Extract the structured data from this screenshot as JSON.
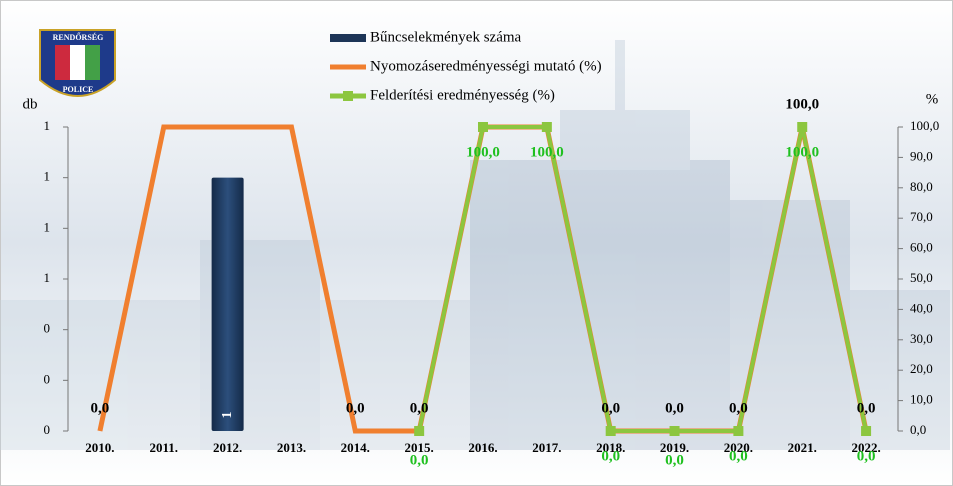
{
  "logo": {
    "top": "RENDŐRSÉG",
    "bottom": "POLICE"
  },
  "chart_data": {
    "type": "combo",
    "ylabel": "db",
    "y2label": "%",
    "categories": [
      "2010.",
      "2011.",
      "2012.",
      "2013.",
      "2014.",
      "2015.",
      "2016.",
      "2017.",
      "2018.",
      "2019.",
      "2020.",
      "2021.",
      "2022."
    ],
    "ylim": [
      0,
      1.2
    ],
    "yticks": [
      {
        "value": 0,
        "label": "0"
      },
      {
        "value": 0.2,
        "label": "0"
      },
      {
        "value": 0.4,
        "label": "0"
      },
      {
        "value": 0.6,
        "label": "1"
      },
      {
        "value": 0.8,
        "label": "1"
      },
      {
        "value": 1.0,
        "label": "1"
      },
      {
        "value": 1.2,
        "label": "1"
      }
    ],
    "y2lim": [
      0,
      100
    ],
    "y2ticks": [
      {
        "value": 0,
        "label": "0,0"
      },
      {
        "value": 10,
        "label": "10,0"
      },
      {
        "value": 20,
        "label": "20,0"
      },
      {
        "value": 30,
        "label": "30,0"
      },
      {
        "value": 40,
        "label": "40,0"
      },
      {
        "value": 50,
        "label": "50,0"
      },
      {
        "value": 60,
        "label": "60,0"
      },
      {
        "value": 70,
        "label": "70,0"
      },
      {
        "value": 80,
        "label": "80,0"
      },
      {
        "value": 90,
        "label": "90,0"
      },
      {
        "value": 100,
        "label": "100,0"
      }
    ],
    "series": [
      {
        "name": "Bűncselekmények száma",
        "type": "bar",
        "color": "#1d3557",
        "label_color": "#ffffff",
        "values": [
          0,
          0,
          1,
          0,
          0,
          0,
          0,
          0,
          0,
          0,
          0,
          0,
          0
        ]
      },
      {
        "name": "Nyomozáseredményességi mutató (%)",
        "type": "line",
        "axis": "y2",
        "color": "#f07f2f",
        "label_color": "#000000",
        "values": [
          0,
          100,
          100,
          100,
          0,
          0,
          100,
          100,
          0,
          0,
          0,
          100,
          0
        ],
        "value_labels": [
          "0,0",
          null,
          null,
          null,
          "0,0",
          "0,0",
          null,
          null,
          "0,0",
          "0,0",
          "0,0",
          "100,0",
          "0,0"
        ]
      },
      {
        "name": "Felderítési eredményesség (%)",
        "type": "line",
        "axis": "y2",
        "color": "#8cc63f",
        "label_color": "#1fc01f",
        "values": [
          null,
          null,
          null,
          null,
          null,
          0,
          100,
          100,
          0,
          0,
          0,
          100,
          0
        ],
        "value_labels": [
          null,
          null,
          null,
          null,
          null,
          "0,0",
          "100,0",
          "100,0",
          "0,0",
          "0,0",
          "0,0",
          "100,0",
          "0,0"
        ]
      }
    ]
  }
}
